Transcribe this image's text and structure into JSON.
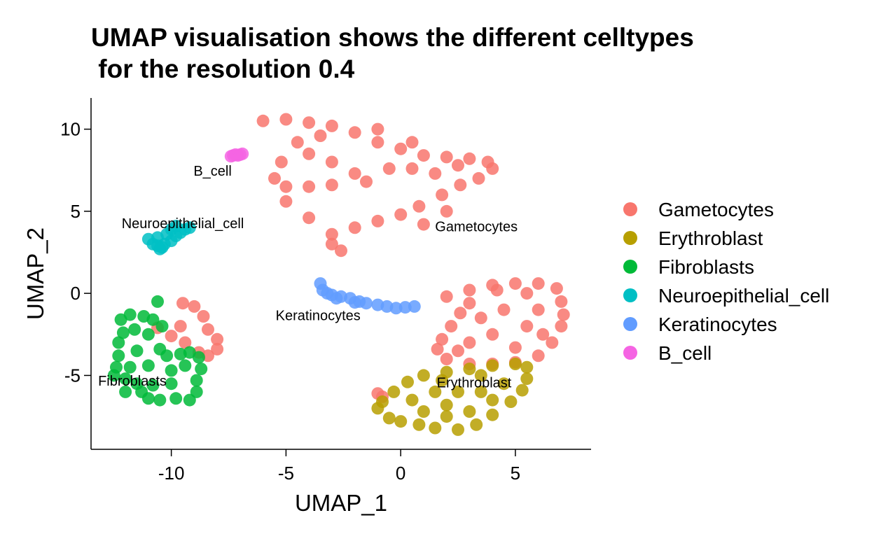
{
  "chart_data": {
    "type": "scatter",
    "title": "UMAP visualisation shows the different celltypes",
    "subtitle": " for the resolution 0.4",
    "xlabel": "UMAP_1",
    "ylabel": "UMAP_2",
    "xlim": [
      -13.5,
      8.3
    ],
    "ylim": [
      -9.5,
      11.9
    ],
    "xticks": [
      -10,
      -5,
      0,
      5
    ],
    "yticks": [
      -5,
      0,
      5,
      10
    ],
    "x_tick_labels": [
      "-10",
      "-5",
      "0",
      "5"
    ],
    "y_tick_labels": [
      "-5",
      "0",
      "5",
      "10"
    ],
    "grid": false,
    "legend_position": "right",
    "legend": [
      {
        "name": "Gametocytes",
        "color": "#F8766D"
      },
      {
        "name": "Erythroblast",
        "color": "#B79F00"
      },
      {
        "name": "Fibroblasts",
        "color": "#00BA38"
      },
      {
        "name": "Neuroepithelial_cell",
        "color": "#00BFC4"
      },
      {
        "name": "Keratinocytes",
        "color": "#619CFF"
      },
      {
        "name": "B_cell",
        "color": "#F564E3"
      }
    ],
    "cluster_labels": [
      {
        "text": "Gametocytes",
        "x": 3.3,
        "y": 4.0
      },
      {
        "text": "Erythroblast",
        "x": 3.2,
        "y": -5.5
      },
      {
        "text": "Fibroblasts",
        "x": -11.7,
        "y": -5.4
      },
      {
        "text": "Neuroepithelial_cell",
        "x": -9.5,
        "y": 4.2
      },
      {
        "text": "Keratinocytes",
        "x": -3.6,
        "y": -1.4
      },
      {
        "text": "B_cell",
        "x": -8.2,
        "y": 7.4
      }
    ],
    "series": [
      {
        "name": "Gametocytes",
        "color": "#F8766D",
        "points": [
          [
            -6.0,
            10.5
          ],
          [
            -5.0,
            10.6
          ],
          [
            -4.0,
            10.4
          ],
          [
            -3.0,
            10.2
          ],
          [
            -2.0,
            9.8
          ],
          [
            -1.0,
            9.2
          ],
          [
            0.0,
            8.8
          ],
          [
            1.0,
            8.4
          ],
          [
            2.0,
            8.3
          ],
          [
            3.0,
            8.2
          ],
          [
            3.8,
            8.0
          ],
          [
            4.0,
            7.6
          ],
          [
            3.4,
            7.0
          ],
          [
            2.6,
            6.6
          ],
          [
            1.8,
            6.0
          ],
          [
            0.8,
            5.3
          ],
          [
            0.0,
            4.8
          ],
          [
            -1.0,
            4.4
          ],
          [
            -2.0,
            4.0
          ],
          [
            -3.0,
            3.6
          ],
          [
            -3.0,
            3.0
          ],
          [
            -2.6,
            2.6
          ],
          [
            -4.0,
            4.6
          ],
          [
            -5.0,
            5.6
          ],
          [
            -5.5,
            7.0
          ],
          [
            -5.2,
            8.0
          ],
          [
            -4.0,
            8.5
          ],
          [
            -3.0,
            8.0
          ],
          [
            -2.0,
            7.3
          ],
          [
            -3.0,
            6.6
          ],
          [
            -4.0,
            6.5
          ],
          [
            -5.0,
            6.5
          ],
          [
            -1.5,
            6.8
          ],
          [
            -0.5,
            7.6
          ],
          [
            0.5,
            7.6
          ],
          [
            1.5,
            7.3
          ],
          [
            2.5,
            7.8
          ],
          [
            -1.0,
            10.0
          ],
          [
            -3.5,
            9.6
          ],
          [
            -4.5,
            9.2
          ],
          [
            0.5,
            9.2
          ],
          [
            2.0,
            5.0
          ],
          [
            1.0,
            4.2
          ],
          [
            2.0,
            -0.2
          ],
          [
            3.0,
            0.2
          ],
          [
            4.0,
            0.5
          ],
          [
            5.0,
            0.6
          ],
          [
            6.0,
            0.6
          ],
          [
            6.8,
            0.3
          ],
          [
            7.0,
            -0.5
          ],
          [
            7.1,
            -1.3
          ],
          [
            7.0,
            -2.0
          ],
          [
            6.6,
            -3.0
          ],
          [
            6.0,
            -3.8
          ],
          [
            5.0,
            -4.2
          ],
          [
            4.0,
            -4.3
          ],
          [
            3.0,
            -4.3
          ],
          [
            2.0,
            -4.0
          ],
          [
            1.6,
            -3.4
          ],
          [
            1.8,
            -2.8
          ],
          [
            2.2,
            -2.0
          ],
          [
            2.6,
            -1.2
          ],
          [
            3.0,
            -0.6
          ],
          [
            3.5,
            -1.5
          ],
          [
            4.5,
            -1.0
          ],
          [
            5.5,
            -2.0
          ],
          [
            4.0,
            -2.5
          ],
          [
            3.0,
            -3.0
          ],
          [
            5.0,
            -3.3
          ],
          [
            6.0,
            -1.0
          ],
          [
            5.5,
            0.0
          ],
          [
            2.5,
            -3.5
          ],
          [
            4.2,
            0.2
          ],
          [
            6.2,
            -2.5
          ],
          [
            -1.0,
            -6.1
          ],
          [
            -0.8,
            -6.3
          ],
          [
            -9.5,
            -0.6
          ],
          [
            -9.0,
            -0.8
          ],
          [
            -8.6,
            -1.4
          ],
          [
            -8.4,
            -2.2
          ],
          [
            -8.0,
            -2.8
          ],
          [
            -8.0,
            -3.4
          ],
          [
            -8.4,
            -3.8
          ],
          [
            -8.8,
            -3.6
          ],
          [
            -9.4,
            -3.0
          ],
          [
            -10.0,
            -2.6
          ],
          [
            -10.6,
            -2.1
          ],
          [
            -9.6,
            -2.0
          ]
        ]
      },
      {
        "name": "Erythroblast",
        "color": "#B79F00",
        "points": [
          [
            -1.0,
            -7.0
          ],
          [
            -0.5,
            -7.6
          ],
          [
            0.0,
            -7.8
          ],
          [
            0.8,
            -8.0
          ],
          [
            1.5,
            -8.2
          ],
          [
            2.5,
            -8.3
          ],
          [
            3.3,
            -8.0
          ],
          [
            4.0,
            -7.4
          ],
          [
            4.8,
            -6.6
          ],
          [
            5.3,
            -5.9
          ],
          [
            5.5,
            -5.2
          ],
          [
            5.5,
            -4.5
          ],
          [
            5.0,
            -4.3
          ],
          [
            4.0,
            -4.4
          ],
          [
            3.0,
            -4.6
          ],
          [
            2.0,
            -4.8
          ],
          [
            1.0,
            -5.0
          ],
          [
            0.3,
            -5.4
          ],
          [
            -0.3,
            -6.0
          ],
          [
            -0.8,
            -6.6
          ],
          [
            0.5,
            -6.5
          ],
          [
            1.5,
            -6.0
          ],
          [
            2.5,
            -6.0
          ],
          [
            3.5,
            -6.0
          ],
          [
            4.5,
            -5.5
          ],
          [
            1.0,
            -7.2
          ],
          [
            2.0,
            -7.5
          ],
          [
            3.0,
            -7.2
          ],
          [
            4.0,
            -6.5
          ],
          [
            2.0,
            -6.8
          ],
          [
            3.5,
            -5.0
          ],
          [
            1.8,
            -5.3
          ]
        ]
      },
      {
        "name": "Fibroblasts",
        "color": "#00BA38",
        "points": [
          [
            -12.2,
            -1.6
          ],
          [
            -11.8,
            -1.3
          ],
          [
            -11.2,
            -1.4
          ],
          [
            -10.8,
            -1.6
          ],
          [
            -10.4,
            -2.0
          ],
          [
            -10.6,
            -0.5
          ],
          [
            -10.5,
            -3.4
          ],
          [
            -10.2,
            -3.8
          ],
          [
            -9.6,
            -3.7
          ],
          [
            -9.2,
            -3.6
          ],
          [
            -8.8,
            -3.9
          ],
          [
            -8.7,
            -4.6
          ],
          [
            -8.9,
            -5.3
          ],
          [
            -8.9,
            -6.0
          ],
          [
            -9.2,
            -6.5
          ],
          [
            -9.8,
            -6.4
          ],
          [
            -10.5,
            -6.5
          ],
          [
            -11.0,
            -6.4
          ],
          [
            -11.3,
            -6.0
          ],
          [
            -11.5,
            -5.5
          ],
          [
            -12.0,
            -5.2
          ],
          [
            -12.5,
            -5.0
          ],
          [
            -12.4,
            -4.5
          ],
          [
            -12.3,
            -3.8
          ],
          [
            -12.3,
            -3.0
          ],
          [
            -12.1,
            -2.4
          ],
          [
            -11.6,
            -2.2
          ],
          [
            -11.0,
            -2.5
          ],
          [
            -11.5,
            -3.5
          ],
          [
            -11.0,
            -4.4
          ],
          [
            -10.0,
            -4.7
          ],
          [
            -10.0,
            -5.5
          ],
          [
            -9.4,
            -4.4
          ],
          [
            -11.8,
            -4.5
          ],
          [
            -10.8,
            -5.6
          ],
          [
            -12.0,
            -6.0
          ]
        ]
      },
      {
        "name": "Neuroepithelial_cell",
        "color": "#00BFC4",
        "points": [
          [
            -11.0,
            3.3
          ],
          [
            -10.8,
            3.0
          ],
          [
            -10.6,
            2.9
          ],
          [
            -10.3,
            3.0
          ],
          [
            -10.0,
            3.2
          ],
          [
            -9.8,
            3.5
          ],
          [
            -9.6,
            3.7
          ],
          [
            -9.4,
            3.9
          ],
          [
            -9.2,
            4.0
          ],
          [
            -10.2,
            3.6
          ],
          [
            -10.6,
            3.4
          ],
          [
            -10.0,
            3.9
          ],
          [
            -10.4,
            2.8
          ],
          [
            -10.5,
            2.7
          ],
          [
            -9.8,
            4.1
          ]
        ]
      },
      {
        "name": "Keratinocytes",
        "color": "#619CFF",
        "points": [
          [
            -3.5,
            0.6
          ],
          [
            -3.4,
            0.2
          ],
          [
            -3.2,
            0.0
          ],
          [
            -3.0,
            -0.1
          ],
          [
            -2.6,
            -0.2
          ],
          [
            -2.2,
            -0.3
          ],
          [
            -1.8,
            -0.5
          ],
          [
            -1.5,
            -0.6
          ],
          [
            -1.0,
            -0.7
          ],
          [
            -0.6,
            -0.8
          ],
          [
            -0.2,
            -0.9
          ],
          [
            0.2,
            -0.85
          ],
          [
            0.6,
            -0.8
          ],
          [
            -2.8,
            -0.3
          ],
          [
            -2.0,
            -0.55
          ]
        ]
      },
      {
        "name": "B_cell",
        "color": "#F564E3",
        "points": [
          [
            -7.4,
            8.35
          ],
          [
            -7.3,
            8.4
          ],
          [
            -7.2,
            8.45
          ],
          [
            -7.1,
            8.4
          ],
          [
            -7.0,
            8.45
          ],
          [
            -6.9,
            8.5
          ]
        ]
      }
    ]
  }
}
